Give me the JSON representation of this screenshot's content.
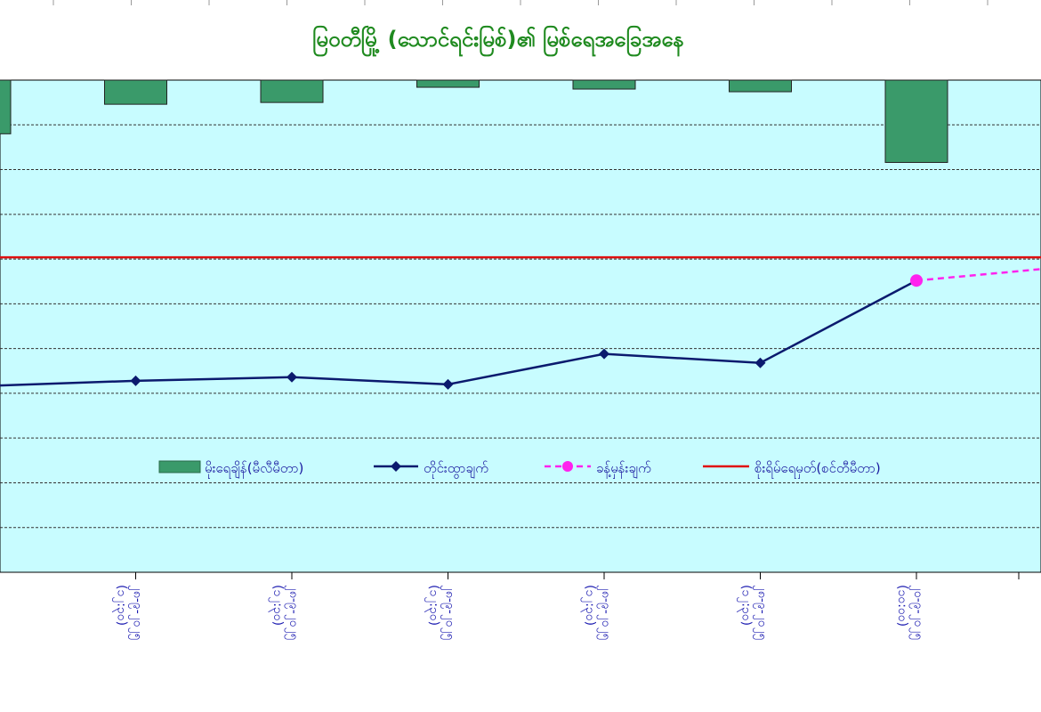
{
  "chart_data": {
    "type": "bar+line",
    "title": "မြဝတီမြို့ (သောင်ရင်းမြစ်)၏ မြစ်ရေအခြေအနေ",
    "categories": [
      "",
      "၂၈-၉-၂၀၂၅ (၁၂:၃၀)",
      "၂၈-၉-၂၀၂၅ (၁၂:၃၀)",
      "၂၈-၉-၂၀၂၅ (၁၂:၃၀)",
      "၂၈-၉-၂၀၂၅ (၁၂:၃၀)",
      "၂၈-၉-၂၀၂၅ (၁၂:၃၀)",
      "၂၀-၉-၂၀၂၅ (၁၀:၀၀)"
    ],
    "rainfall": {
      "name": "မိုးရေချိန်(မီလီမီတာ)",
      "color": "#3a9a6a",
      "values": [
        60,
        27,
        25,
        8,
        10,
        13,
        92
      ],
      "ylim": [
        0,
        550
      ]
    },
    "observed": {
      "name": "တိုင်းထွာချက်",
      "color": "#0b1a6e",
      "values": [
        -4.2,
        -3.6,
        -3.2,
        -4.0,
        -0.6,
        -1.6,
        7.6
      ]
    },
    "forecast": {
      "name": "ခန့်မှန်းချက်",
      "color": "#ff22ee",
      "values": [
        7.6,
        9.2
      ]
    },
    "danger": {
      "name": "စိုးရိမ်ရေမှတ်(စင်တီမီတာ)",
      "color": "#e01010",
      "value": 10.2
    },
    "level_range": [
      -25,
      30
    ],
    "grid": true,
    "legend": "inside-bottom"
  }
}
